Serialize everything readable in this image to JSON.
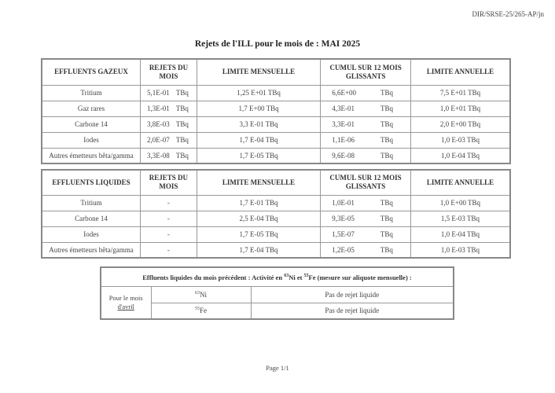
{
  "reference": "DIR/SRSE-25/265-AP/jn",
  "title": "Rejets de l'ILL pour le mois de : MAI 2025",
  "gaseous": {
    "headers": [
      "EFFLUENTS GAZEUX",
      "REJETS DU MOIS",
      "LIMITE MENSUELLE",
      "CUMUL SUR 12 MOIS GLISSANTS",
      "LIMITE ANNUELLE"
    ],
    "unit": "TBq",
    "rows": [
      {
        "name": "Tritium",
        "month": "5,1E-01",
        "monthly_limit": "1,25 E+01 TBq",
        "cumul": "6,6E+00",
        "annual_limit": "7,5 E+01 TBq"
      },
      {
        "name": "Gaz rares",
        "month": "1,3E-01",
        "monthly_limit": "1,7 E+00 TBq",
        "cumul": "4,3E-01",
        "annual_limit": "1,0 E+01 TBq"
      },
      {
        "name": "Carbone 14",
        "month": "3,8E-03",
        "monthly_limit": "3,3 E-01 TBq",
        "cumul": "3,3E-01",
        "annual_limit": "2,0 E+00 TBq"
      },
      {
        "name": "Iodes",
        "month": "2,0E-07",
        "monthly_limit": "1,7 E-04 TBq",
        "cumul": "1,1E-06",
        "annual_limit": "1,0 E-03 TBq"
      },
      {
        "name": "Autres émetteurs bêta/gamma",
        "month": "3,3E-08",
        "monthly_limit": "1,7 E-05 TBq",
        "cumul": "9,6E-08",
        "annual_limit": "1,0 E-04 TBq"
      }
    ]
  },
  "liquid": {
    "headers": [
      "EFFLUENTS LIQUIDES",
      "REJETS DU MOIS",
      "LIMITE MENSUELLE",
      "CUMUL SUR 12 MOIS GLISSANTS",
      "LIMITE ANNUELLE"
    ],
    "unit": "TBq",
    "rows": [
      {
        "name": "Tritium",
        "month": "-",
        "monthly_limit": "1,7 E-01 TBq",
        "cumul": "1,0E-01",
        "annual_limit": "1,0 E+00 TBq"
      },
      {
        "name": "Carbone 14",
        "month": "-",
        "monthly_limit": "2,5 E-04 TBq",
        "cumul": "9,3E-05",
        "annual_limit": "1,5 E-03 TBq"
      },
      {
        "name": "Iodes",
        "month": "-",
        "monthly_limit": "1,7 E-05 TBq",
        "cumul": "1,5E-07",
        "annual_limit": "1,0 E-04 TBq"
      },
      {
        "name": "Autres émetteurs bêta/gamma",
        "month": "-",
        "monthly_limit": "1,7 E-04 TBq",
        "cumul": "1,2E-05",
        "annual_limit": "1,0 E-03 TBq"
      }
    ]
  },
  "previous": {
    "header_a": "Effluents liquides du mois précédent : Activité en ",
    "ni_mass": "63",
    "ni": "Ni",
    "and": " et ",
    "fe_mass": "55",
    "fe": "Fe",
    "header_b": " (mesure sur aliquote mensuelle) :",
    "period_a": "Pour le mois",
    "period_b": "d'avril",
    "values": [
      "Pas de rejet liquide",
      "Pas de rejet liquide"
    ]
  },
  "footer": "Page 1/1"
}
